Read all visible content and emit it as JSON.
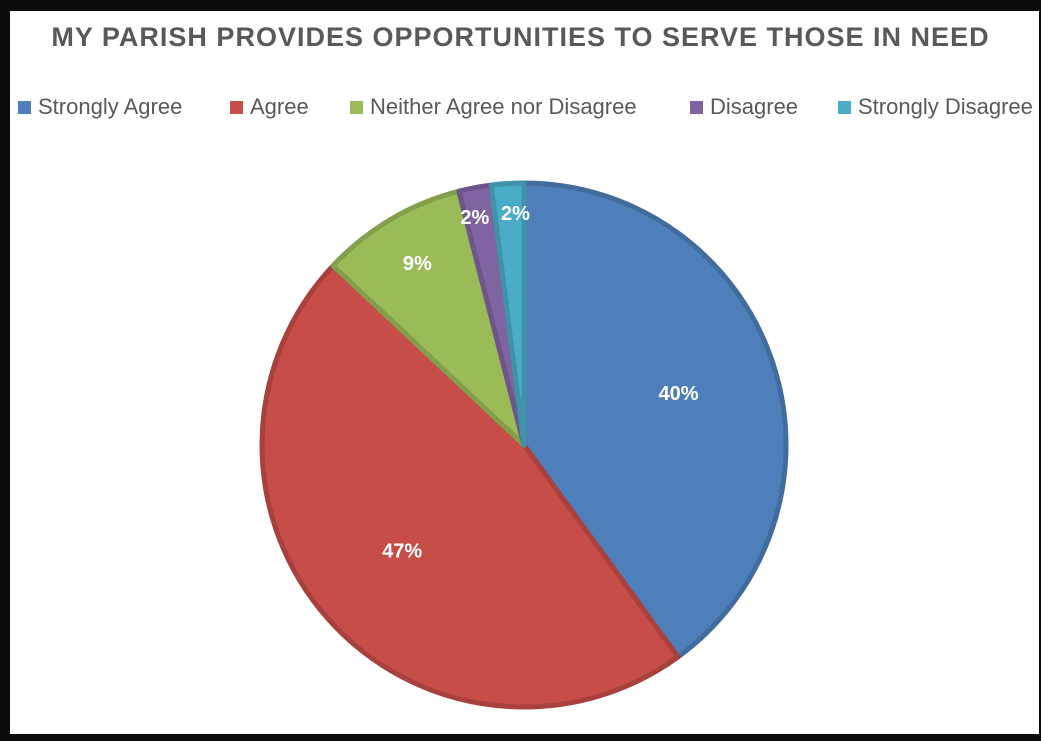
{
  "chart_data": {
    "type": "pie",
    "title": "MY PARISH PROVIDES OPPORTUNITIES TO SERVE THOSE IN NEED",
    "legend_position": "top",
    "categories": [
      "Strongly Agree",
      "Agree",
      "Neither Agree nor Disagree",
      "Disagree",
      "Strongly Disagree"
    ],
    "values": [
      40,
      47,
      9,
      2,
      2
    ],
    "value_labels": [
      "40%",
      "47%",
      "9%",
      "2%",
      "2%"
    ],
    "unit": "%",
    "colors": [
      "#4f7fba",
      "#c64d48",
      "#9bbb59",
      "#8064a2",
      "#4aacc6"
    ]
  }
}
